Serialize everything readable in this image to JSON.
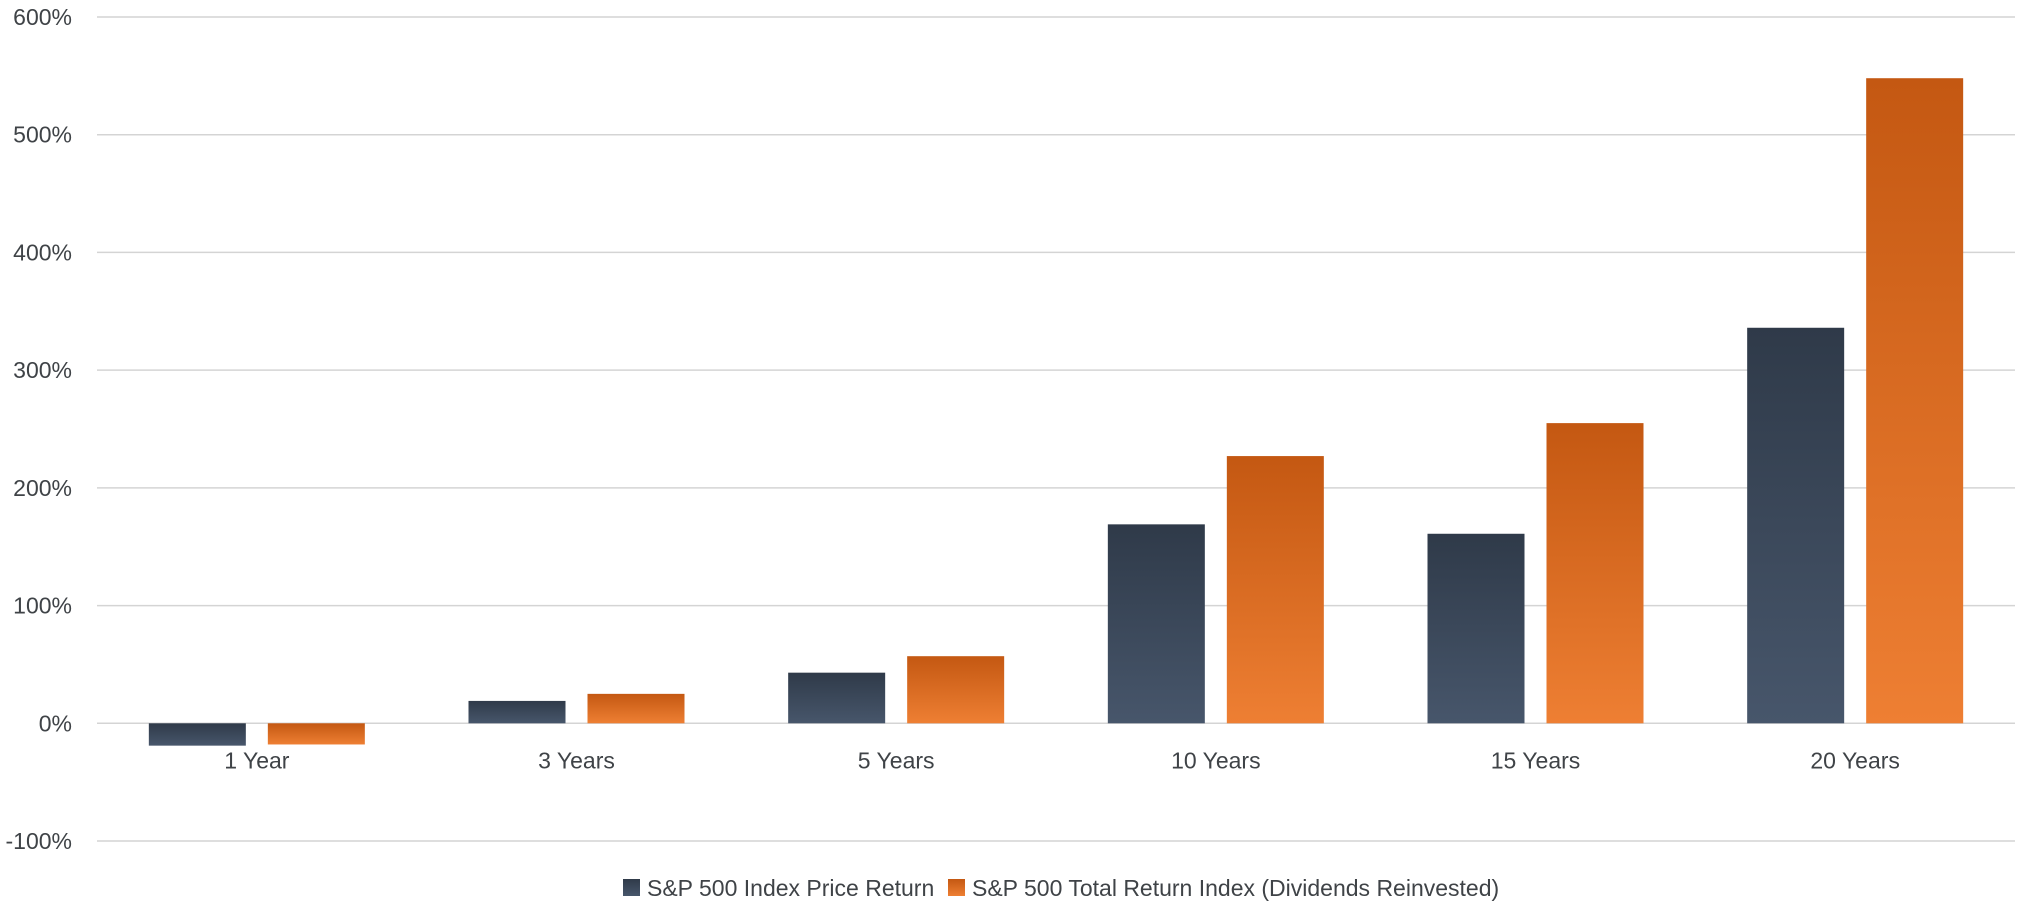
{
  "chart_data": {
    "type": "bar",
    "categories": [
      "1 Year",
      "3 Years",
      "5 Years",
      "10 Years",
      "15 Years",
      "20 Years"
    ],
    "series": [
      {
        "name": "S&P 500 Index Price Return",
        "values": [
          -19,
          19,
          43,
          169,
          161,
          336
        ],
        "color": "#35404f"
      },
      {
        "name": "S&P 500 Total Return Index (Dividends Reinvested)",
        "values": [
          -18,
          25,
          57,
          227,
          255,
          548
        ],
        "color": "#d9661f"
      }
    ],
    "ylim": [
      -100,
      600
    ],
    "yticks": [
      -100,
      0,
      100,
      200,
      300,
      400,
      500,
      600
    ],
    "ytick_labels": [
      "-100%",
      "0%",
      "100%",
      "200%",
      "300%",
      "400%",
      "500%",
      "600%"
    ],
    "grid": true,
    "legend_position": "bottom-center",
    "title": "",
    "xlabel": "",
    "ylabel": ""
  }
}
